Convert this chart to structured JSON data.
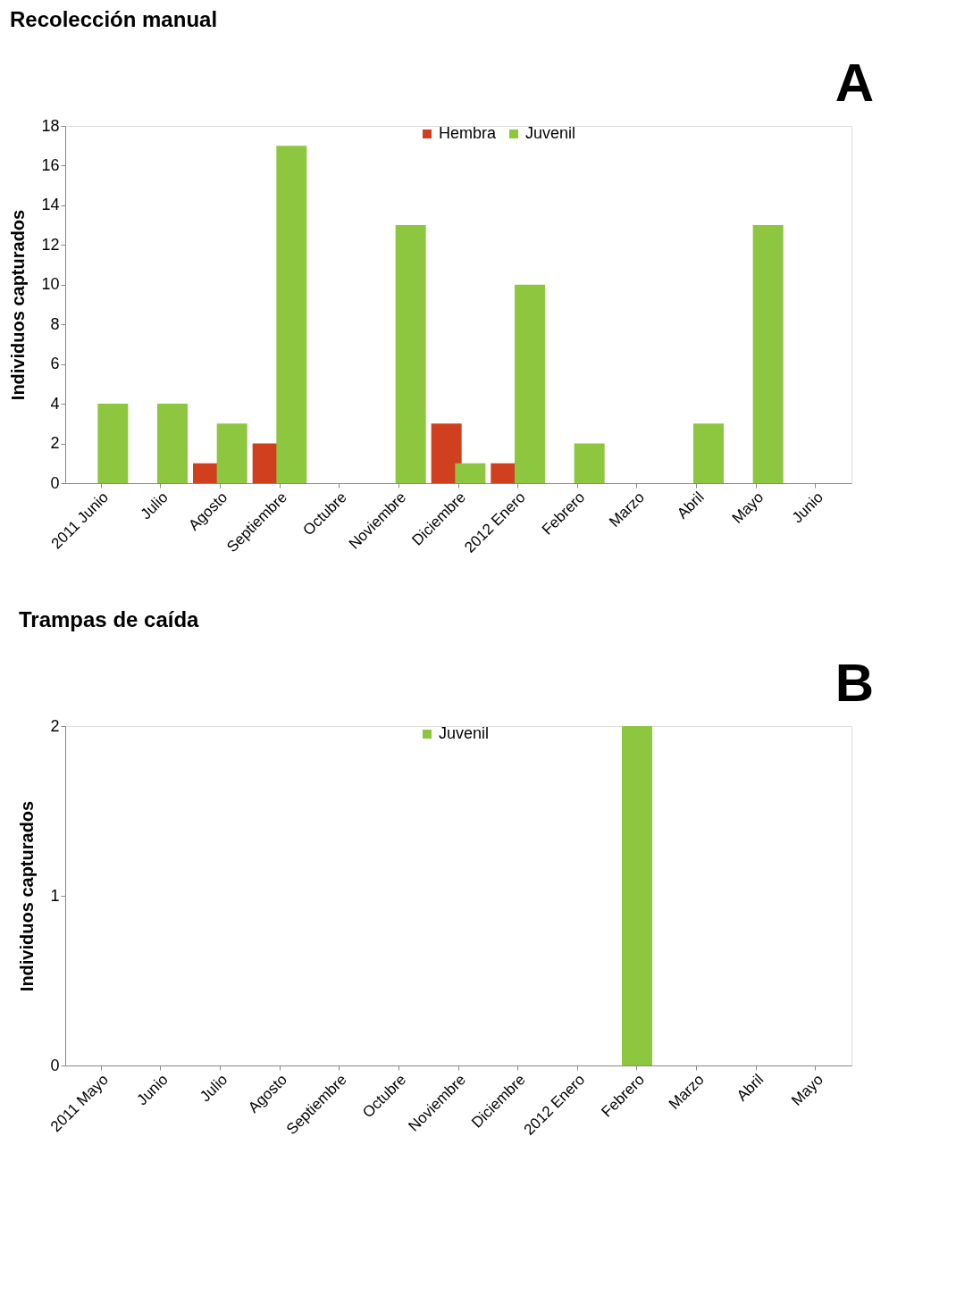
{
  "chart_data": [
    {
      "type": "bar",
      "title": "Recolección manual",
      "ylabel": "Individuos capturados",
      "categories": [
        "2011 Junio",
        "Julio",
        "Agosto",
        "Septiembre",
        "Octubre",
        "Noviembre",
        "Diciembre",
        "2012 Enero",
        "Febrero",
        "Marzo",
        "Abril",
        "Mayo",
        "Junio"
      ],
      "series": [
        {
          "name": "Hembra",
          "color": "#d0401f",
          "values": [
            null,
            null,
            1,
            2,
            null,
            null,
            3,
            1,
            null,
            null,
            null,
            null,
            null
          ]
        },
        {
          "name": "Juvenil",
          "color": "#8dc63f",
          "values": [
            4,
            4,
            3,
            17,
            null,
            13,
            1,
            10,
            2,
            null,
            3,
            13,
            null
          ]
        }
      ],
      "ylim": [
        0,
        18
      ],
      "yticks": [
        0,
        2,
        4,
        6,
        8,
        10,
        12,
        14,
        16,
        18
      ],
      "grid": false,
      "legend": "top",
      "annotations": [
        "A"
      ]
    },
    {
      "type": "bar",
      "title": "Trampas de caída",
      "ylabel": "Individuos capturados",
      "categories": [
        "2011 Mayo",
        "Junio",
        "Julio",
        "Agosto",
        "Septiembre",
        "Octubre",
        "Noviembre",
        "Diciembre",
        "2012 Enero",
        "Febrero",
        "Marzo",
        "Abril",
        "Mayo"
      ],
      "series": [
        {
          "name": "Juvenil",
          "color": "#8dc63f",
          "values": [
            null,
            null,
            null,
            null,
            null,
            null,
            null,
            null,
            null,
            2,
            null,
            null,
            null
          ]
        }
      ],
      "ylim": [
        0,
        2
      ],
      "yticks": [
        0,
        1,
        2
      ],
      "grid": false,
      "legend": "top",
      "annotations": [
        "B"
      ]
    }
  ]
}
